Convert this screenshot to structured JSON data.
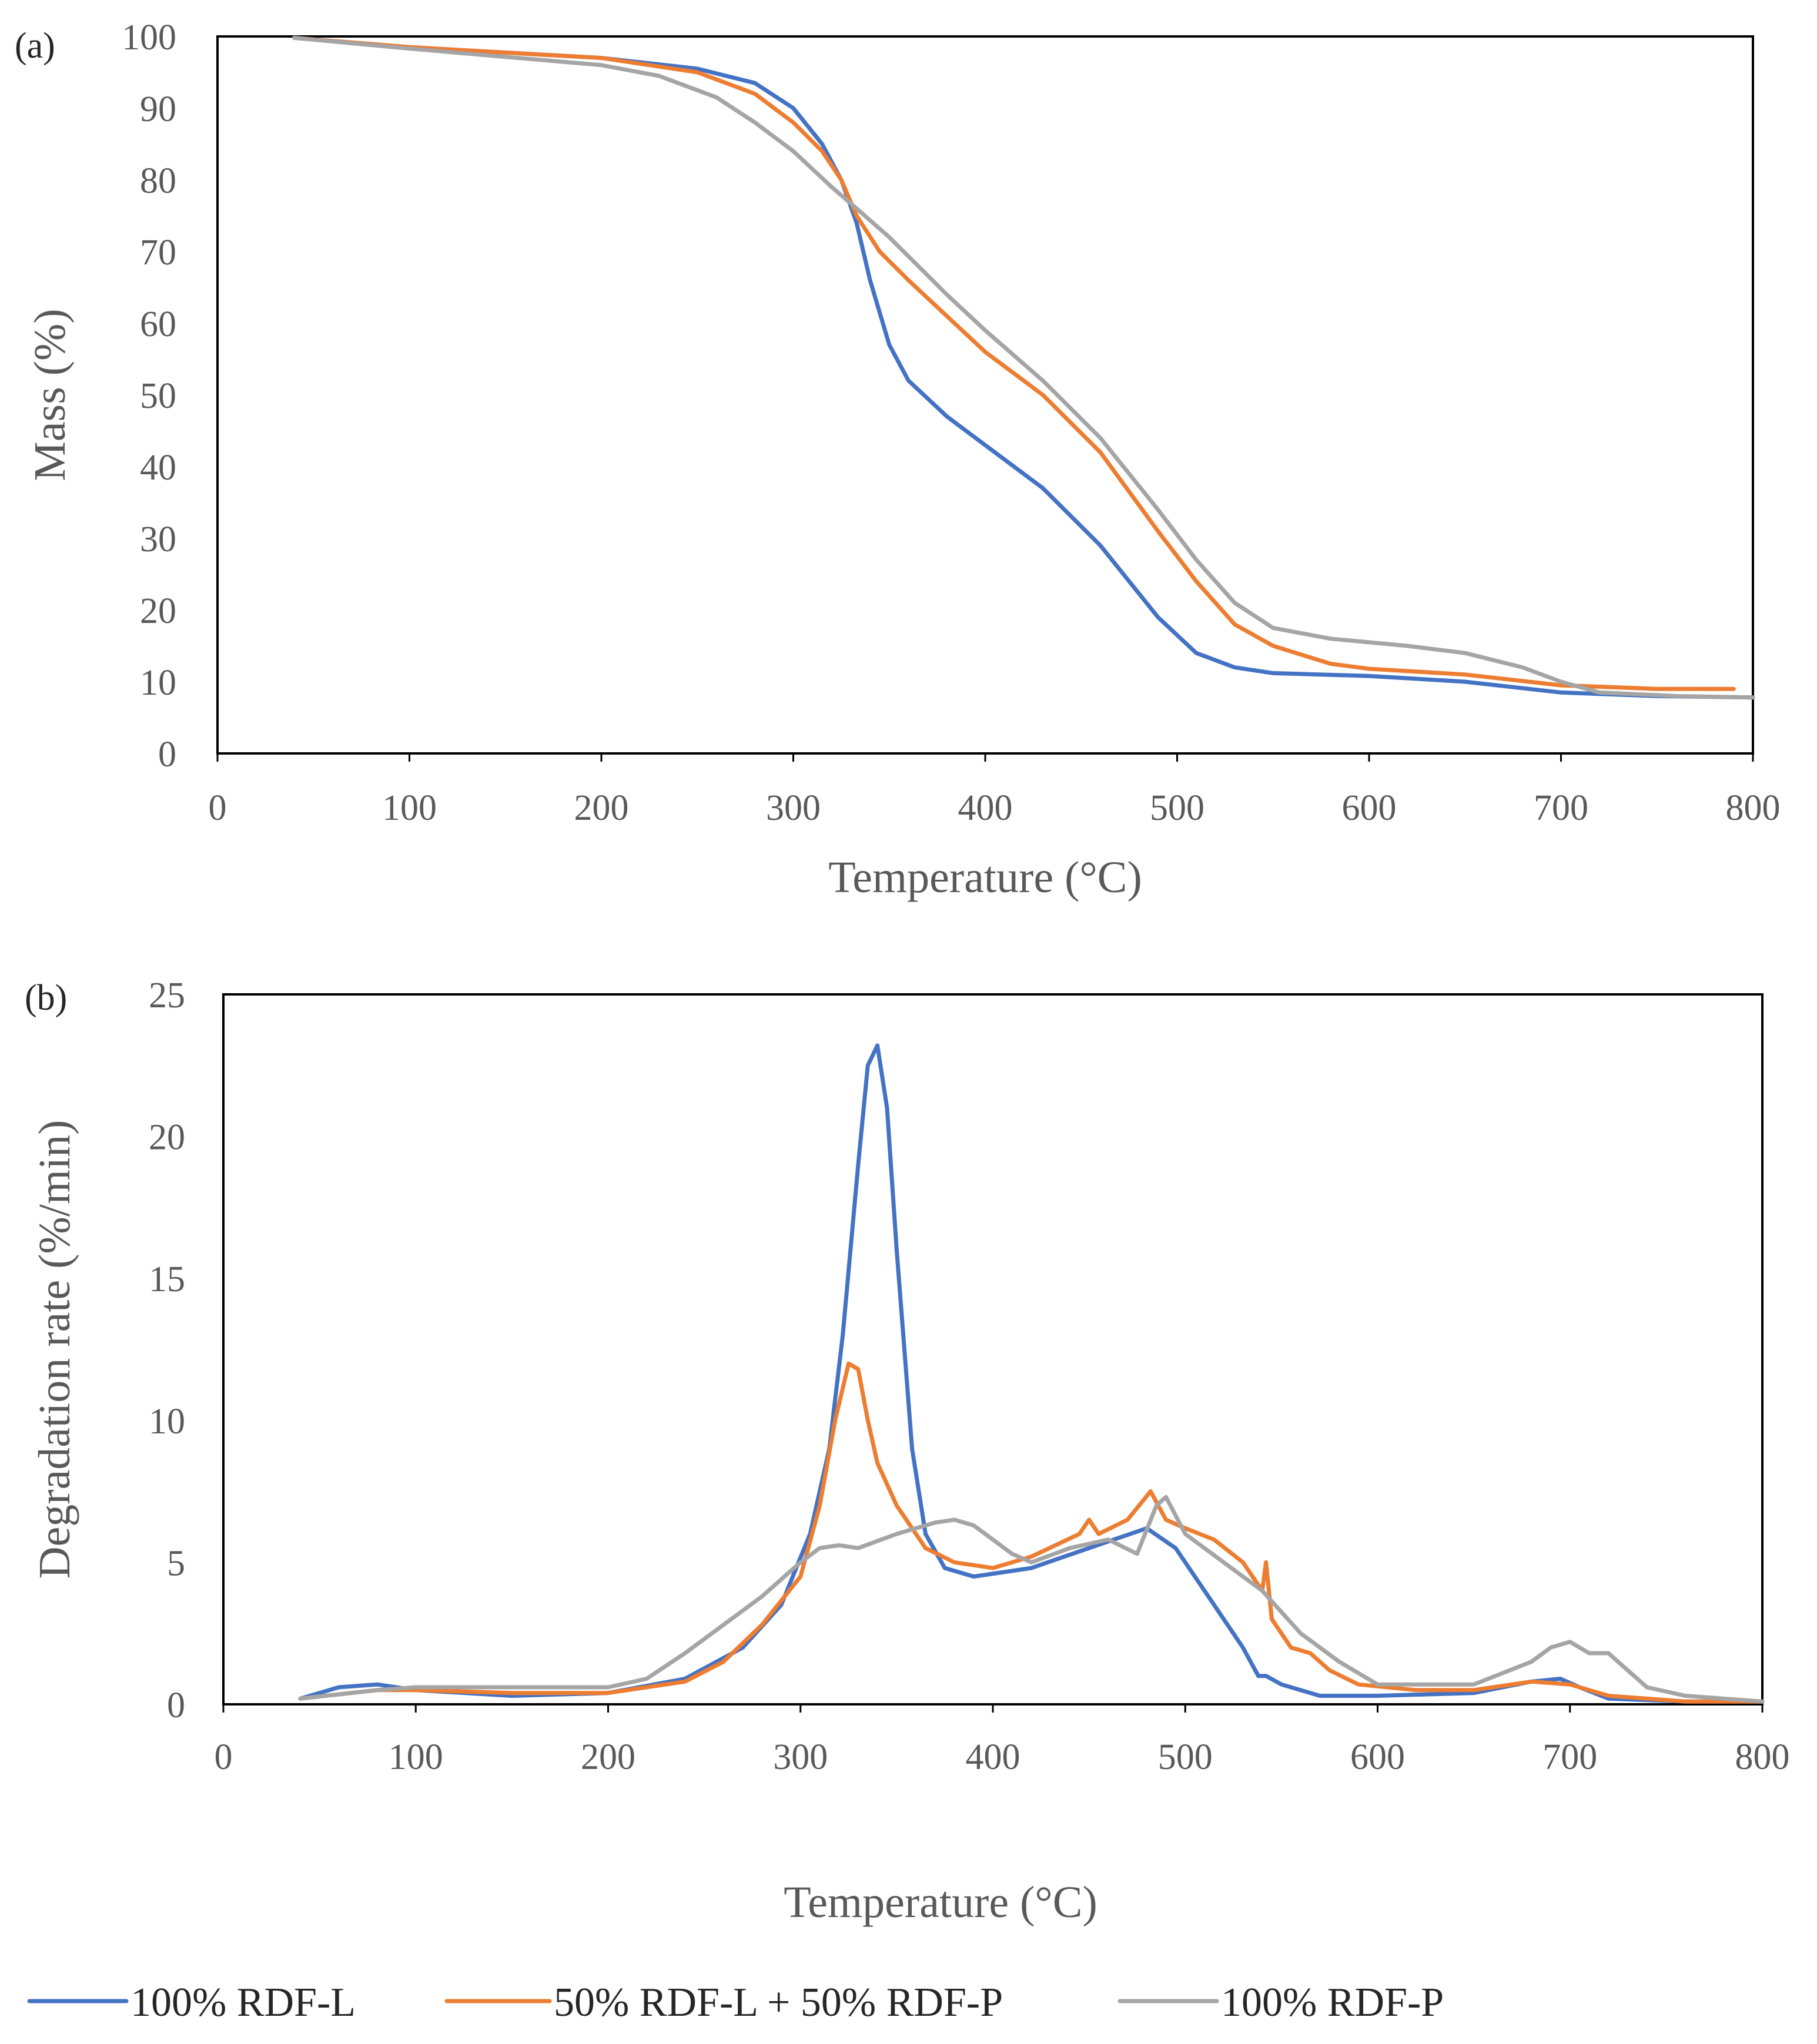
{
  "chart_data": [
    {
      "panel": "(a)",
      "type": "line",
      "xlabel": "Temperature (°C)",
      "ylabel": "Mass (%)",
      "xlim": [
        0,
        800
      ],
      "ylim": [
        0,
        100
      ],
      "xticks": [
        0,
        100,
        200,
        300,
        400,
        500,
        600,
        700,
        800
      ],
      "yticks": [
        0,
        10,
        20,
        30,
        40,
        50,
        60,
        70,
        80,
        90,
        100
      ],
      "series": [
        {
          "name": "100% RDF-L",
          "color": "#4472C4",
          "x": [
            40,
            100,
            200,
            250,
            280,
            300,
            315,
            325,
            333,
            340,
            350,
            360,
            380,
            400,
            430,
            460,
            490,
            510,
            530,
            550,
            600,
            650,
            700,
            750,
            800
          ],
          "y": [
            99.8,
            98.5,
            97,
            95.5,
            93.5,
            90,
            85,
            80,
            74,
            66,
            57,
            52,
            47,
            43,
            37,
            29,
            19,
            14,
            12,
            11.2,
            10.8,
            10,
            8.5,
            8,
            7.8
          ]
        },
        {
          "name": "50% RDF-L + 50% RDF-P",
          "color": "#ED7D31",
          "x": [
            40,
            100,
            200,
            250,
            280,
            300,
            315,
            325,
            333,
            345,
            360,
            380,
            400,
            430,
            460,
            490,
            510,
            530,
            550,
            580,
            600,
            650,
            700,
            750,
            790
          ],
          "y": [
            99.8,
            98.5,
            97,
            95,
            92,
            88,
            84,
            80,
            75,
            70,
            66,
            61,
            56,
            50,
            42,
            31,
            24,
            18,
            15,
            12.5,
            11.8,
            11,
            9.5,
            9,
            9
          ]
        },
        {
          "name": "100% RDF-P",
          "color": "#A5A5A5",
          "x": [
            40,
            100,
            200,
            230,
            260,
            280,
            300,
            320,
            333,
            350,
            380,
            400,
            430,
            460,
            490,
            510,
            530,
            550,
            580,
            620,
            650,
            680,
            700,
            720,
            760,
            800
          ],
          "y": [
            99.8,
            98.3,
            96,
            94.5,
            91.5,
            88,
            84,
            79,
            76,
            72,
            64,
            59,
            52,
            44,
            34,
            27,
            21,
            17.5,
            16,
            15,
            14,
            12,
            10,
            8.5,
            8,
            7.8
          ]
        }
      ]
    },
    {
      "panel": "(b)",
      "type": "line",
      "xlabel": "Temperature (°C)",
      "ylabel": "Degradation rate (%/min)",
      "xlim": [
        0,
        800
      ],
      "ylim": [
        0,
        25
      ],
      "xticks": [
        0,
        100,
        200,
        300,
        400,
        500,
        600,
        700,
        800
      ],
      "yticks": [
        0,
        5,
        10,
        15,
        20,
        25
      ],
      "series": [
        {
          "name": "100% RDF-L",
          "color": "#4472C4",
          "x": [
            40,
            60,
            80,
            100,
            150,
            200,
            240,
            270,
            290,
            305,
            315,
            322,
            330,
            335,
            340,
            345,
            350,
            358,
            365,
            375,
            390,
            420,
            450,
            480,
            495,
            510,
            520,
            530,
            538,
            542,
            550,
            570,
            600,
            650,
            680,
            695,
            705,
            720,
            760,
            800
          ],
          "y": [
            0.2,
            0.6,
            0.7,
            0.5,
            0.3,
            0.4,
            0.9,
            2.0,
            3.5,
            6.0,
            9.0,
            13.0,
            19.0,
            22.5,
            23.2,
            21.0,
            16.0,
            9.0,
            6.0,
            4.8,
            4.5,
            4.8,
            5.5,
            6.2,
            5.5,
            4.0,
            3.0,
            2.0,
            1.0,
            1.0,
            0.7,
            0.3,
            0.3,
            0.4,
            0.8,
            0.9,
            0.6,
            0.2,
            0.1,
            0.1
          ]
        },
        {
          "name": "50% RDF-L + 50% RDF-P",
          "color": "#ED7D31",
          "x": [
            40,
            80,
            100,
            150,
            200,
            240,
            260,
            280,
            300,
            310,
            318,
            325,
            330,
            335,
            340,
            350,
            365,
            380,
            400,
            420,
            445,
            450,
            455,
            470,
            482,
            490,
            500,
            515,
            530,
            540,
            542,
            545,
            555,
            565,
            575,
            590,
            620,
            650,
            680,
            700,
            720,
            760,
            800
          ],
          "y": [
            0.2,
            0.5,
            0.5,
            0.4,
            0.4,
            0.8,
            1.5,
            2.8,
            4.5,
            7.0,
            10.0,
            12.0,
            11.8,
            10.0,
            8.5,
            7.0,
            5.5,
            5.0,
            4.8,
            5.2,
            6.0,
            6.5,
            6.0,
            6.5,
            7.5,
            6.5,
            6.2,
            5.8,
            5.0,
            4.0,
            5.0,
            3.0,
            2.0,
            1.8,
            1.2,
            0.7,
            0.5,
            0.5,
            0.8,
            0.7,
            0.3,
            0.1,
            0.1
          ]
        },
        {
          "name": "100% RDF-P",
          "color": "#A5A5A5",
          "x": [
            40,
            80,
            100,
            150,
            200,
            220,
            240,
            260,
            280,
            300,
            310,
            320,
            330,
            350,
            370,
            380,
            390,
            400,
            410,
            420,
            440,
            460,
            475,
            485,
            490,
            500,
            520,
            540,
            560,
            580,
            600,
            650,
            680,
            690,
            700,
            710,
            720,
            730,
            740,
            760,
            800
          ],
          "y": [
            0.2,
            0.5,
            0.6,
            0.6,
            0.6,
            0.9,
            1.8,
            2.8,
            3.8,
            5.0,
            5.5,
            5.6,
            5.5,
            6.0,
            6.4,
            6.5,
            6.3,
            5.8,
            5.3,
            5.0,
            5.5,
            5.8,
            5.3,
            7.0,
            7.3,
            6.0,
            5.0,
            4.0,
            2.5,
            1.5,
            0.7,
            0.7,
            1.5,
            2.0,
            2.2,
            1.8,
            1.8,
            1.2,
            0.6,
            0.3,
            0.1
          ]
        }
      ]
    }
  ],
  "legend": [
    {
      "label": "100% RDF-L",
      "color": "#4472C4"
    },
    {
      "label": "50% RDF-L + 50% RDF-P",
      "color": "#ED7D31"
    },
    {
      "label": "100% RDF-P",
      "color": "#A5A5A5"
    }
  ]
}
